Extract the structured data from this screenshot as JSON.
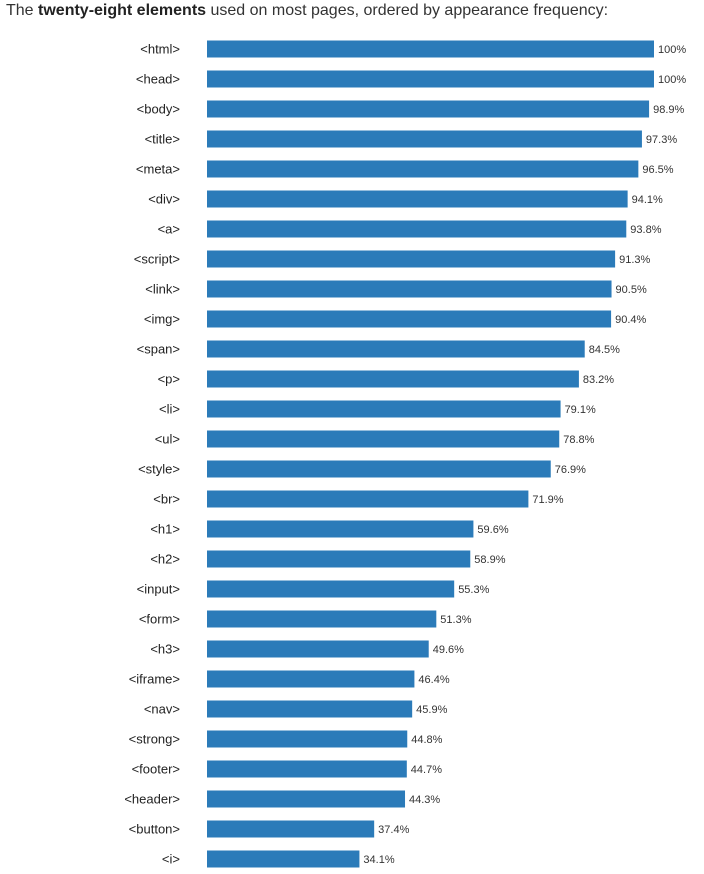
{
  "intro": {
    "prefix": "The ",
    "bold": "twenty-eight elements",
    "suffix": " used on most pages, ordered by appearance frequency:"
  },
  "colors": {
    "bar": "#2b7bb9",
    "text": "#222222"
  },
  "chart_data": {
    "type": "bar",
    "orientation": "horizontal",
    "categories": [
      "<html>",
      "<head>",
      "<body>",
      "<title>",
      "<meta>",
      "<div>",
      "<a>",
      "<script>",
      "<link>",
      "<img>",
      "<span>",
      "<p>",
      "<li>",
      "<ul>",
      "<style>",
      "<br>",
      "<h1>",
      "<h2>",
      "<input>",
      "<form>",
      "<h3>",
      "<iframe>",
      "<nav>",
      "<strong>",
      "<footer>",
      "<header>",
      "<button>",
      "<i>"
    ],
    "values": [
      100,
      100,
      98.9,
      97.3,
      96.5,
      94.1,
      93.8,
      91.3,
      90.5,
      90.4,
      84.5,
      83.2,
      79.1,
      78.8,
      76.9,
      71.9,
      59.6,
      58.9,
      55.3,
      51.3,
      49.6,
      46.4,
      45.9,
      44.8,
      44.7,
      44.3,
      37.4,
      34.1
    ],
    "value_labels": [
      "100%",
      "100%",
      "98.9%",
      "97.3%",
      "96.5%",
      "94.1%",
      "93.8%",
      "91.3%",
      "90.5%",
      "90.4%",
      "84.5%",
      "83.2%",
      "79.1%",
      "78.8%",
      "76.9%",
      "71.9%",
      "59.6%",
      "58.9%",
      "55.3%",
      "51.3%",
      "49.6%",
      "46.4%",
      "45.9%",
      "44.8%",
      "44.7%",
      "44.3%",
      "37.4%",
      "34.1%"
    ],
    "xlim": [
      0,
      100
    ],
    "grid": false,
    "legend": "none"
  }
}
